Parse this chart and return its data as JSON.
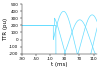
{
  "title": "",
  "ylabel": "TTR (pu)",
  "xlabel": "t (ms)",
  "ylabel_fontsize": 4,
  "xlabel_fontsize": 4,
  "tick_fontsize": 3,
  "line_color": "#66ddff",
  "bg_color": "#ffffff",
  "ylim": [
    -200,
    500
  ],
  "xlim": [
    -90,
    120
  ],
  "yticks": [
    -200,
    -100,
    0,
    100,
    200,
    300,
    400,
    500
  ],
  "xticks": [
    -90,
    -50,
    -10,
    30,
    70,
    110
  ],
  "xtick_labels": [
    "-90",
    "-50",
    "-10",
    "30",
    "70",
    "110"
  ],
  "ytick_labels": [
    "-200",
    "-100",
    "0",
    "100",
    "200",
    "300",
    "400",
    "500"
  ],
  "t_break1": -2.0,
  "t_break2": 1.5,
  "t_break3": 5.0,
  "pre_level1": 200.0,
  "pre_level2": 200.0,
  "pre_level3": 200.0,
  "trv_amp1": 400.0,
  "trv_amp2": 350.0,
  "trv_amp3": 280.0,
  "trv_omega": 0.055,
  "trv_phi2": 2.094,
  "trv_phi3": 4.189,
  "lw": 0.5
}
